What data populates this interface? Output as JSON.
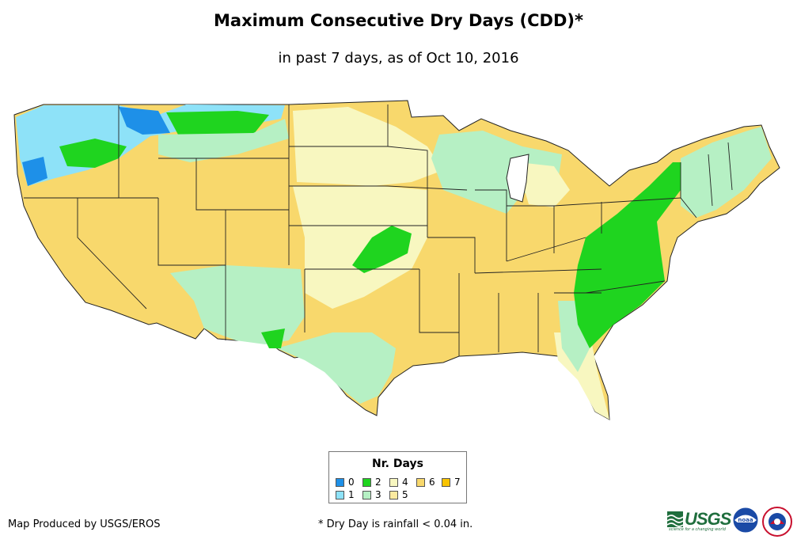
{
  "title": "Maximum Consecutive Dry Days (CDD)*",
  "subtitle": "in past 7 days, as of Oct 10, 2016",
  "legend": {
    "title": "Nr. Days",
    "items": [
      {
        "label": "0",
        "color": "#1e90e8"
      },
      {
        "label": "1",
        "color": "#8ee2f8"
      },
      {
        "label": "2",
        "color": "#1fd41f"
      },
      {
        "label": "3",
        "color": "#b6f0c4"
      },
      {
        "label": "4",
        "color": "#f8f7c0"
      },
      {
        "label": "5",
        "color": "#fbeaa0"
      },
      {
        "label": "6",
        "color": "#f8d86c"
      },
      {
        "label": "7",
        "color": "#f8c300"
      }
    ]
  },
  "footer": {
    "credit": "Map Produced by USGS/EROS",
    "footnote": "* Dry Day is rainfall < 0.04 in."
  },
  "logos": {
    "usgs": "USGS",
    "usgs_tagline": "science for a changing world",
    "noaa": "noaa"
  }
}
